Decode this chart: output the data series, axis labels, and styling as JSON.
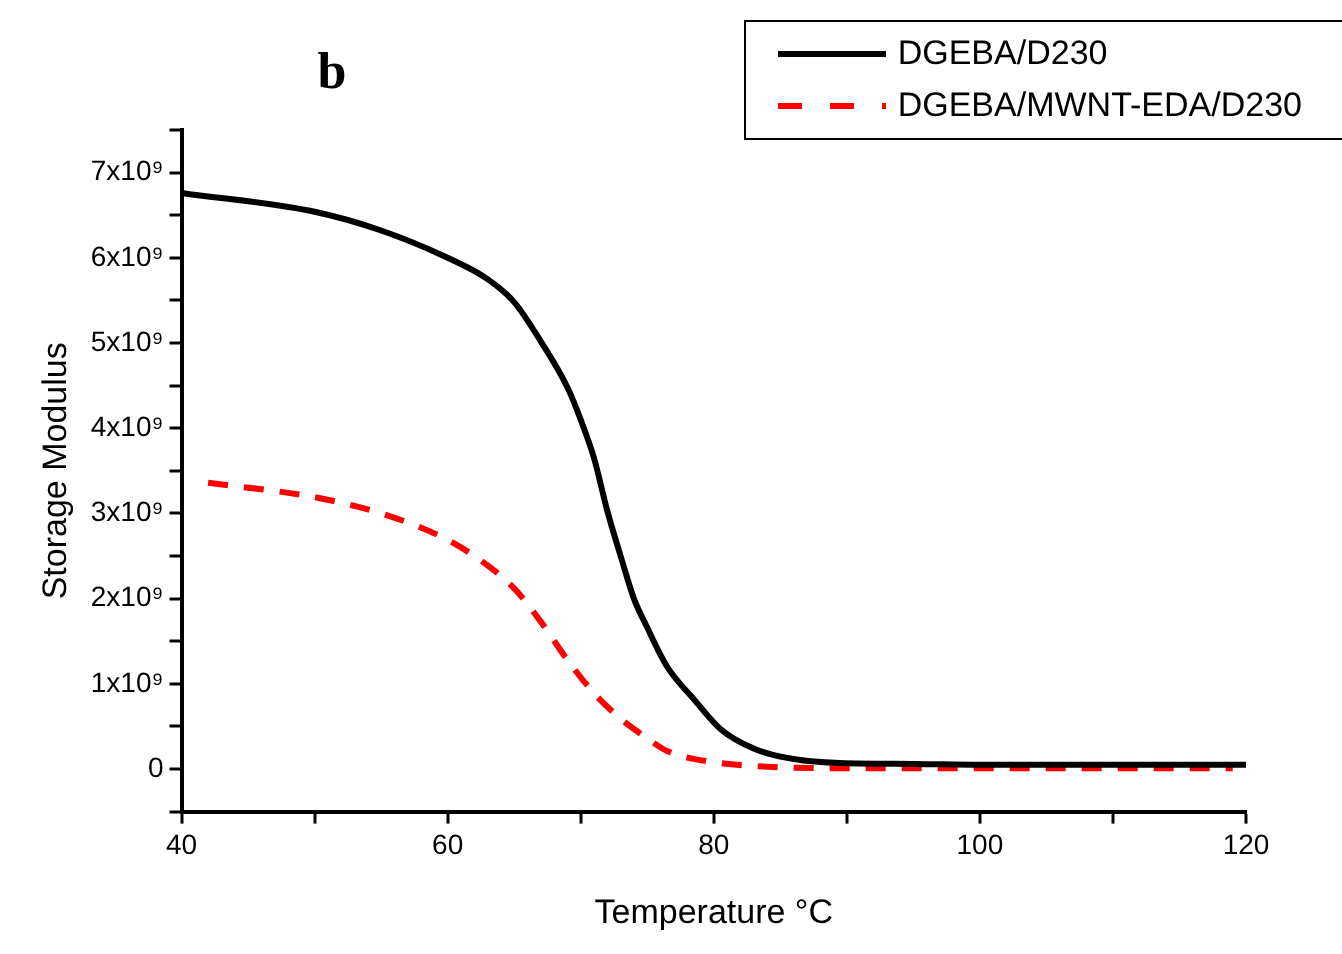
{
  "chart_data": {
    "type": "line",
    "title": "b",
    "xlabel": "Temperature °C",
    "ylabel": "Storage Modulus",
    "xlim": [
      40,
      120
    ],
    "xticks": [
      40,
      {
        "value": 50,
        "label": null
      },
      60,
      {
        "value": 70,
        "label": null
      },
      80,
      {
        "value": 90,
        "label": null
      },
      100,
      {
        "value": 110,
        "label": null
      },
      120
    ],
    "ylim": [
      -500000000.0,
      7500000000.0
    ],
    "yticks": [
      {
        "value": -500000000.0,
        "label": null
      },
      0,
      {
        "value": 500000000.0,
        "label": null
      },
      {
        "value": 1000000000.0,
        "label": "1x10⁹"
      },
      {
        "value": 1500000000.0,
        "label": null
      },
      {
        "value": 2000000000.0,
        "label": "2x10⁹"
      },
      {
        "value": 2500000000.0,
        "label": null
      },
      {
        "value": 3000000000.0,
        "label": "3x10⁹"
      },
      {
        "value": 3500000000.0,
        "label": null
      },
      {
        "value": 4000000000.0,
        "label": "4x10⁹"
      },
      {
        "value": 4500000000.0,
        "label": null
      },
      {
        "value": 5000000000.0,
        "label": "5x10⁹"
      },
      {
        "value": 5500000000.0,
        "label": null
      },
      {
        "value": 6000000000.0,
        "label": "6x10⁹"
      },
      {
        "value": 6500000000.0,
        "label": null
      },
      {
        "value": 7000000000.0,
        "label": "7x10⁹"
      },
      {
        "value": 7500000000.0,
        "label": null
      }
    ],
    "grid": false,
    "legend": "top right",
    "marker": "none",
    "series": [
      {
        "name": "DGEBA/D230",
        "color": "#000000",
        "line_style": "solid",
        "x": [
          40,
          50,
          55,
          60,
          63,
          65,
          67,
          69,
          70,
          71,
          72,
          73,
          74,
          75,
          76.5,
          78.5,
          80.5,
          83,
          85.5,
          89.5,
          95,
          100,
          110,
          120
        ],
        "values": [
          6760000000.0,
          6540000000.0,
          6320000000.0,
          6000000000.0,
          5750000000.0,
          5480000000.0,
          5020000000.0,
          4480000000.0,
          4100000000.0,
          3650000000.0,
          3030000000.0,
          2500000000.0,
          2000000000.0,
          1660000000.0,
          1200000000.0,
          820000000.0,
          470000000.0,
          240000000.0,
          130000000.0,
          70000000.0,
          60000000.0,
          50000000.0,
          50000000.0,
          50000000.0
        ]
      },
      {
        "name": "DGEBA/MWNT-EDA/D230",
        "color": "#ff0000",
        "line_style": "dashed",
        "x": [
          42,
          50,
          55,
          60,
          63,
          65,
          67,
          69,
          71,
          73,
          75,
          76.5,
          80,
          85,
          90,
          100,
          110,
          119
        ],
        "values": [
          3360000000.0,
          3190000000.0,
          3000000000.0,
          2690000000.0,
          2390000000.0,
          2120000000.0,
          1730000000.0,
          1280000000.0,
          890000000.0,
          590000000.0,
          360000000.0,
          210000000.0,
          80000000.0,
          20000000.0,
          10000000.0,
          10000000.0,
          10000000.0,
          10000000.0
        ]
      }
    ]
  }
}
